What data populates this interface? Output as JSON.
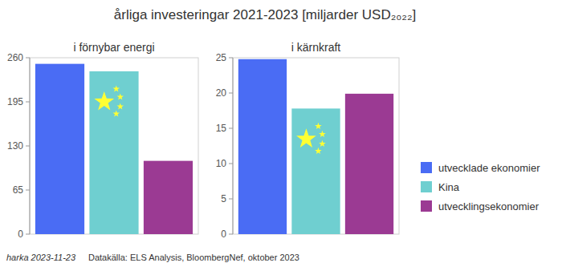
{
  "header": {
    "title": "årliga investeringar 2021-2023 [miljarder USD₂₀₂₂]"
  },
  "chart_data": [
    {
      "type": "bar",
      "title": "i förnybar energi",
      "categories": [
        null
      ],
      "series": [
        {
          "color": "#4a6cf4",
          "values": [
            251
          ]
        },
        {
          "color": "#6fcfd0",
          "values": [
            240
          ]
        },
        {
          "color": "#9b3a93",
          "values": [
            108
          ]
        }
      ],
      "ylim": [
        0,
        260
      ],
      "yticks": [
        0,
        65,
        130,
        195,
        260
      ],
      "grid": false,
      "tick_labels": "y"
    },
    {
      "type": "bar",
      "title": "i kärnkraft",
      "categories": [
        null
      ],
      "series": [
        {
          "name": "utvecklade ekonomier",
          "color": "#4a6cf4",
          "values": [
            24.8
          ]
        },
        {
          "name": "Kina",
          "color": "#6fcfd0",
          "values": [
            17.8
          ]
        },
        {
          "name": "utvecklingsekonomier",
          "color": "#9b3a93",
          "values": [
            19.9
          ]
        }
      ],
      "ylim": [
        0,
        25
      ],
      "yticks": [
        0,
        5,
        10,
        15,
        20,
        25
      ],
      "grid": false,
      "tick_labels": "y",
      "legend": "right"
    }
  ],
  "footer": {
    "author": "harka 2023-11-23",
    "source": "Datakälla: ELS Analysis, BloombergNef, oktober 2023"
  }
}
